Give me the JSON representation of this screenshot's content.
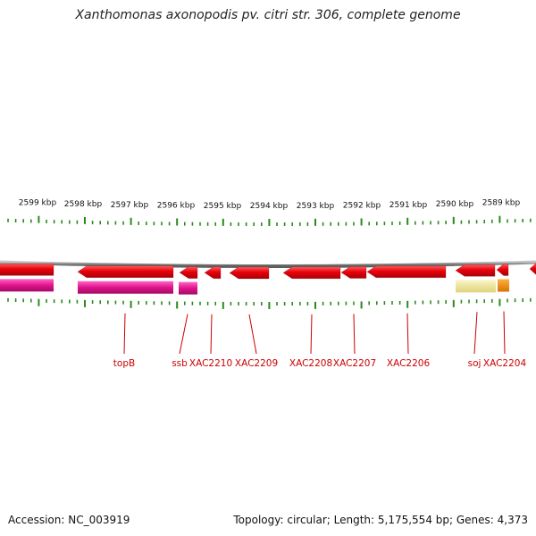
{
  "title": "Xanthomonas axonopodis pv. citri str. 306, complete genome",
  "scale_labels": [
    "2599 kbp",
    "2598 kbp",
    "2597 kbp",
    "2596 kbp",
    "2595 kbp",
    "2594 kbp",
    "2593 kbp",
    "2592 kbp",
    "2591 kbp",
    "2590 kbp",
    "2589 kbp"
  ],
  "gene_labels": [
    "topB",
    "ssb",
    "XAC2210",
    "XAC2209",
    "XAC2208",
    "XAC2207",
    "XAC2206",
    "soj",
    "XAC2204"
  ],
  "footer": {
    "accession": "Accession: NC_003919",
    "summary": "Topology: circular; Length: 5,175,554 bp; Genes: 4,373"
  },
  "colors": {
    "gene_red": "#e8000a",
    "cog_magenta": "#e0148c",
    "cog_khaki": "#ece49a",
    "cog_orange": "#f08c00",
    "backbone": "#888888",
    "ticks": "#2a8a1a",
    "label_red": "#cc0000"
  }
}
